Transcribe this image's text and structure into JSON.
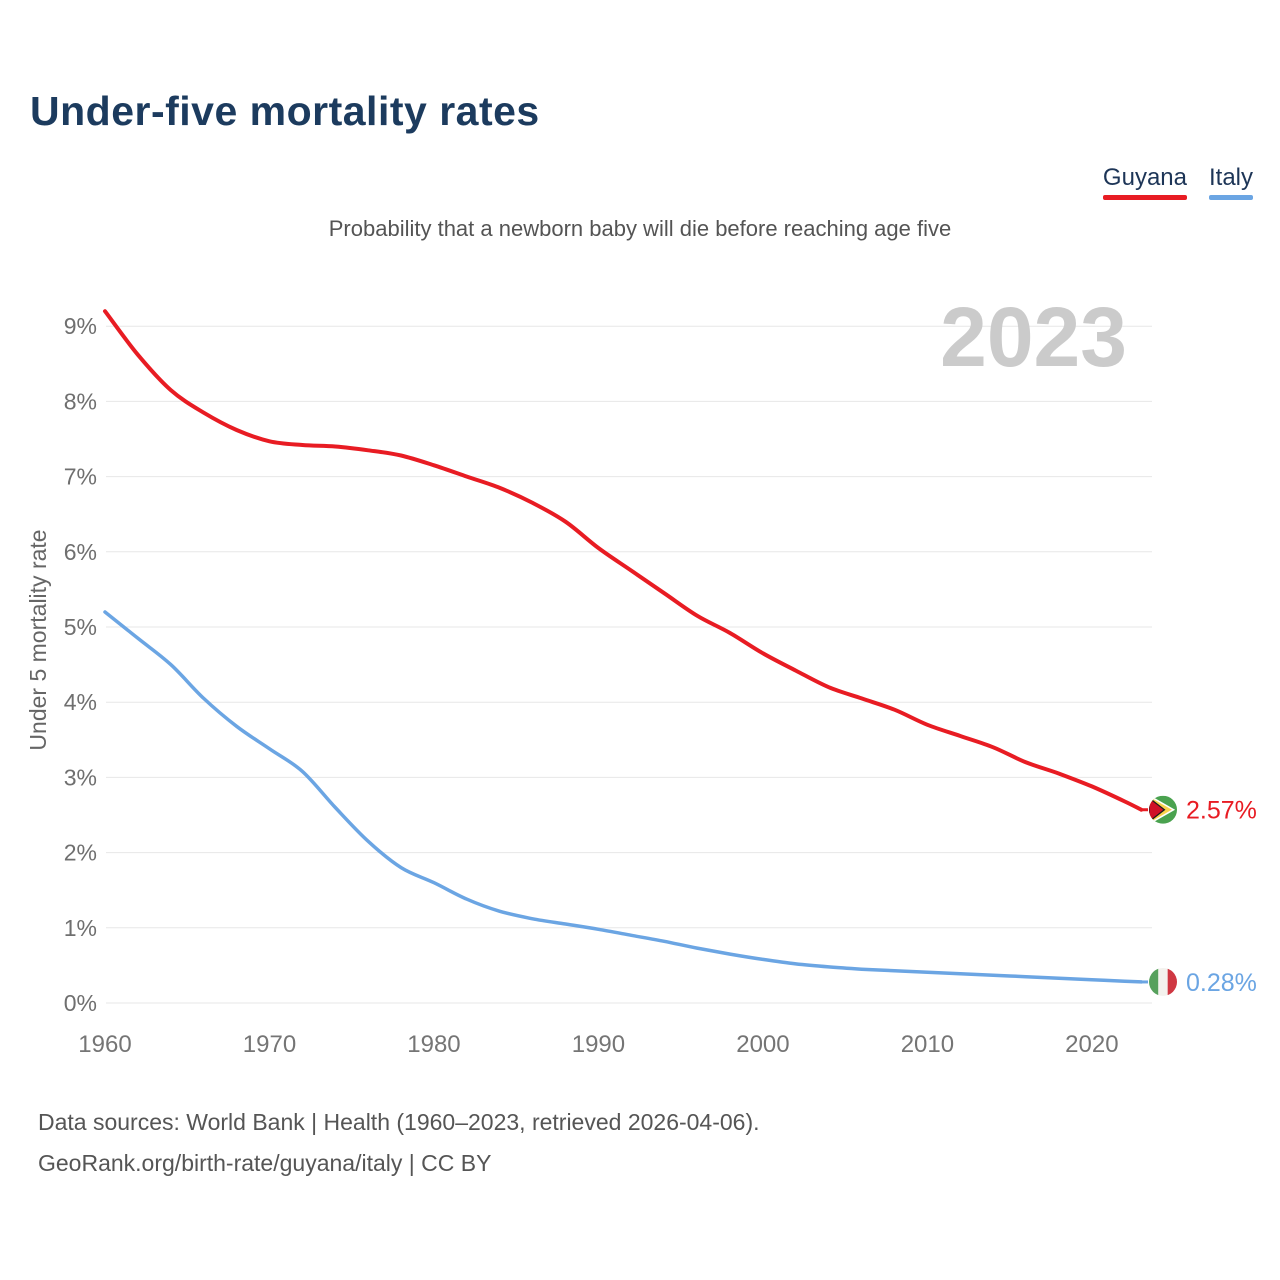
{
  "header": {
    "title": "Under-five mortality rates"
  },
  "legend": [
    {
      "label": "Guyana",
      "color": "#e81c23"
    },
    {
      "label": "Italy",
      "color": "#6ba5e3"
    }
  ],
  "subtitle": "Probability that a newborn baby will die before reaching age five",
  "chart_data": {
    "type": "line",
    "title": "Under-five mortality rates",
    "subtitle": "Probability that a newborn baby will die before reaching age five",
    "year_label": "2023",
    "xlabel": "",
    "ylabel": "Under 5 mortality rate",
    "xlim": [
      1960,
      2023
    ],
    "ylim": [
      0,
      9.3
    ],
    "grid": "horizontal",
    "x_ticks": [
      1960,
      1970,
      1980,
      1990,
      2000,
      2010,
      2020
    ],
    "y_ticks": [
      {
        "value": 0,
        "label": "0%"
      },
      {
        "value": 1,
        "label": "1%"
      },
      {
        "value": 2,
        "label": "2%"
      },
      {
        "value": 3,
        "label": "3%"
      },
      {
        "value": 4,
        "label": "4%"
      },
      {
        "value": 5,
        "label": "5%"
      },
      {
        "value": 6,
        "label": "6%"
      },
      {
        "value": 7,
        "label": "7%"
      },
      {
        "value": 8,
        "label": "8%"
      },
      {
        "value": 9,
        "label": "9%"
      }
    ],
    "x": [
      1960,
      1962,
      1964,
      1966,
      1968,
      1970,
      1972,
      1974,
      1976,
      1978,
      1980,
      1982,
      1984,
      1986,
      1988,
      1990,
      1992,
      1994,
      1996,
      1998,
      2000,
      2002,
      2004,
      2006,
      2008,
      2010,
      2012,
      2014,
      2016,
      2018,
      2020,
      2022,
      2023
    ],
    "series": [
      {
        "name": "Guyana",
        "color": "#e81c23",
        "flag_icon": "guyana-flag-icon",
        "end_label": "2.57%",
        "values": [
          9.2,
          8.62,
          8.15,
          7.85,
          7.62,
          7.47,
          7.42,
          7.4,
          7.35,
          7.28,
          7.15,
          7.0,
          6.85,
          6.65,
          6.4,
          6.05,
          5.75,
          5.45,
          5.15,
          4.92,
          4.65,
          4.42,
          4.2,
          4.05,
          3.9,
          3.7,
          3.55,
          3.4,
          3.2,
          3.05,
          2.88,
          2.68,
          2.57
        ]
      },
      {
        "name": "Italy",
        "color": "#6ba5e3",
        "flag_icon": "italy-flag-icon",
        "end_label": "0.28%",
        "values": [
          5.2,
          4.85,
          4.5,
          4.05,
          3.68,
          3.38,
          3.08,
          2.6,
          2.15,
          1.8,
          1.6,
          1.38,
          1.22,
          1.12,
          1.05,
          0.98,
          0.9,
          0.82,
          0.73,
          0.65,
          0.58,
          0.52,
          0.48,
          0.45,
          0.43,
          0.41,
          0.39,
          0.37,
          0.35,
          0.33,
          0.31,
          0.29,
          0.28
        ]
      }
    ],
    "legend_position": "top-right"
  },
  "footer": {
    "line1": "Data sources: World Bank | Health (1960–2023, retrieved 2026-04-06).",
    "line2": "GeoRank.org/birth-rate/guyana/italy | CC BY"
  }
}
